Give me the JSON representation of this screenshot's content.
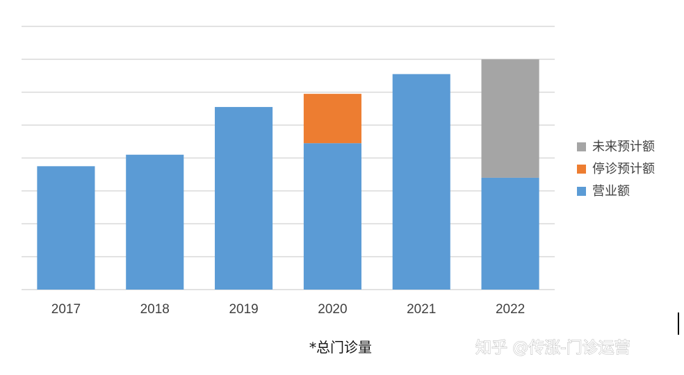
{
  "chart_data": {
    "type": "bar",
    "stacked": true,
    "categories": [
      "2017",
      "2018",
      "2019",
      "2020",
      "2021",
      "2022"
    ],
    "series": [
      {
        "name": "营业额",
        "color": "#5b9bd5",
        "values": [
          3.75,
          4.1,
          5.55,
          4.45,
          6.55,
          3.4
        ]
      },
      {
        "name": "停诊预计额",
        "color": "#ed7d31",
        "values": [
          0,
          0,
          0,
          1.5,
          0,
          0
        ]
      },
      {
        "name": "未来预计额",
        "color": "#a5a5a5",
        "values": [
          0,
          0,
          0,
          0,
          0,
          3.6
        ]
      }
    ],
    "ylim": [
      0,
      8
    ],
    "grid": true,
    "legend_position": "right",
    "legend_order": [
      "未来预计额",
      "停诊预计额",
      "营业额"
    ],
    "y_tick_labels_shown": false,
    "footnote": "*总门诊量"
  },
  "watermark": {
    "text": "知乎 @传涨-门诊运营",
    "icon": "zhihu-watermark"
  },
  "colors": {
    "gridline": "#d9d9d9",
    "axis_text": "#404040"
  }
}
